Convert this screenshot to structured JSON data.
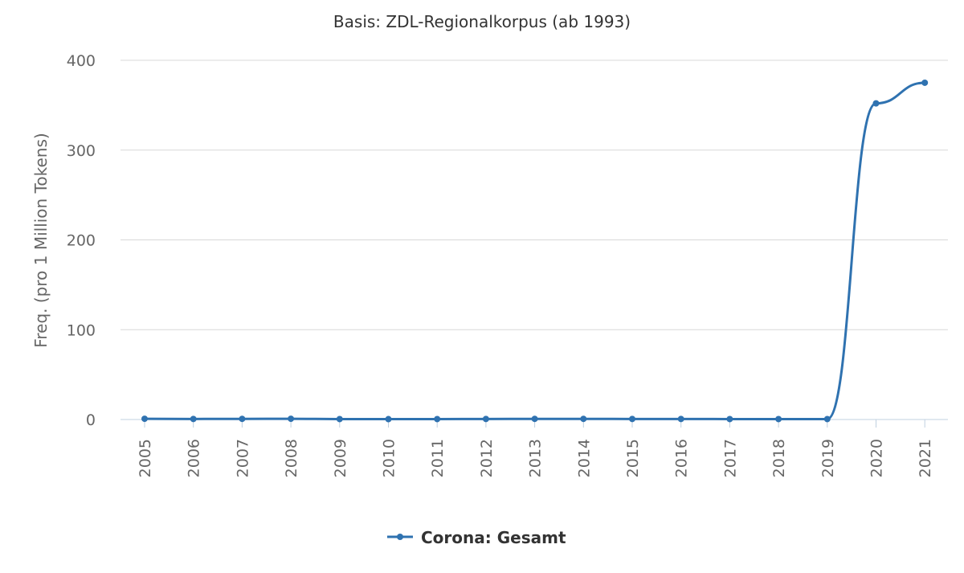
{
  "chart_data": {
    "type": "line",
    "title": "Basis: ZDL-Regionalkorpus (ab 1993)",
    "ylabel": "Freq. (pro 1 Million Tokens)",
    "xlabel": "",
    "ylim": [
      0,
      400
    ],
    "yticks": [
      0,
      100,
      200,
      300,
      400
    ],
    "grid": true,
    "legend_position": "bottom-center",
    "categories": [
      "2005",
      "2006",
      "2007",
      "2008",
      "2009",
      "2010",
      "2011",
      "2012",
      "2013",
      "2014",
      "2015",
      "2016",
      "2017",
      "2018",
      "2019",
      "2020",
      "2021"
    ],
    "series": [
      {
        "name": "Corona: Gesamt",
        "color": "#2f72b0",
        "values": [
          0.8,
          0.6,
          0.7,
          0.8,
          0.5,
          0.4,
          0.5,
          0.6,
          0.7,
          0.7,
          0.6,
          0.6,
          0.5,
          0.5,
          0.5,
          352,
          375
        ]
      }
    ]
  }
}
